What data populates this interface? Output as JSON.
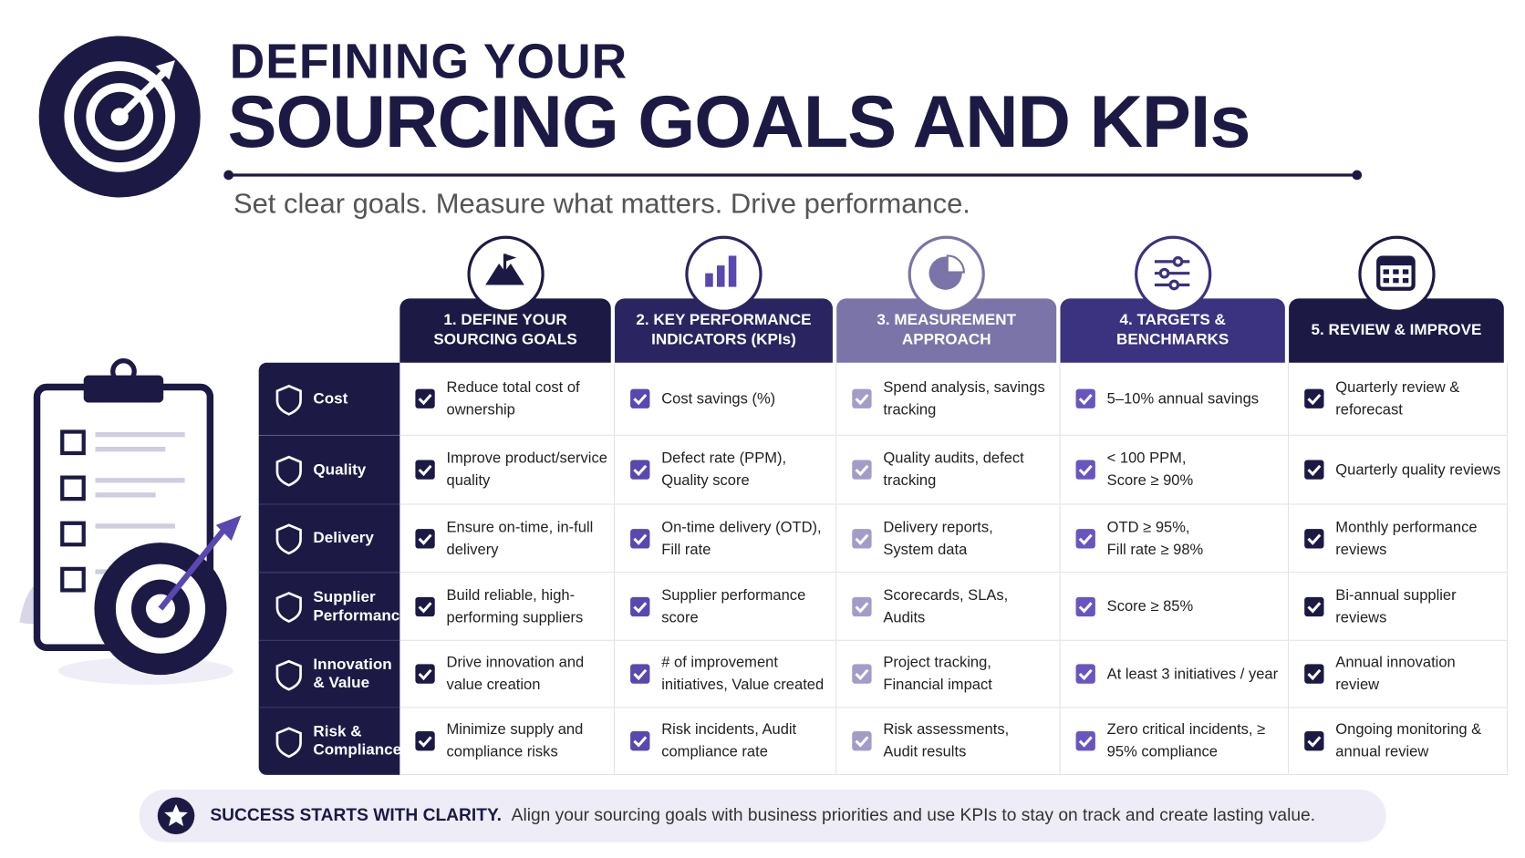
{
  "header": {
    "title_line1": "DEFINING YOUR",
    "title_line2": "SOURCING GOALS AND KPIs",
    "subtitle": "Set clear goals. Measure what matters. Drive performance."
  },
  "table": {
    "columns": [
      "1. DEFINE YOUR SOURCING GOALS",
      "2. KEY PERFORMANCE INDICATORS (KPIs)",
      "3. MEASUREMENT APPROACH",
      "4. TARGETS & BENCHMARKS",
      "5. REVIEW & IMPROVE"
    ],
    "rows": [
      {
        "label": "Cost",
        "cells": [
          "Reduce total cost of ownership",
          "Cost savings (%)",
          "Spend analysis, savings tracking",
          "5–10% annual savings",
          "Quarterly review & reforecast"
        ]
      },
      {
        "label": "Quality",
        "cells": [
          "Improve product/service quality",
          "Defect rate (PPM), Quality score",
          "Quality audits, defect tracking",
          "< 100 PPM,\nScore ≥ 90%",
          "Quarterly quality reviews"
        ]
      },
      {
        "label": "Delivery",
        "cells": [
          "Ensure on-time, in-full delivery",
          "On-time delivery (OTD), Fill rate",
          "Delivery reports,\nSystem data",
          "OTD ≥ 95%,\nFill rate ≥ 98%",
          "Monthly performance reviews"
        ]
      },
      {
        "label": "Supplier Performance",
        "cells": [
          "Build reliable, high-performing suppliers",
          "Supplier performance score",
          "Scorecards, SLAs,\nAudits",
          "Score ≥ 85%",
          "Bi-annual supplier reviews"
        ]
      },
      {
        "label": "Innovation & Value",
        "cells": [
          "Drive innovation and value creation",
          "# of improvement initiatives, Value created",
          "Project tracking,\nFinancial impact",
          "At least 3 initiatives / year",
          "Annual innovation review"
        ]
      },
      {
        "label": "Risk & Compliance",
        "cells": [
          "Minimize supply and compliance risks",
          "Risk incidents, Audit compliance rate",
          "Risk assessments,\nAudit results",
          "Zero critical incidents, ≥ 95% compliance",
          "Ongoing monitoring & annual review"
        ]
      }
    ]
  },
  "footer": {
    "bold": "SUCCESS STARTS WITH CLARITY.",
    "text": "Align your sourcing goals with business priorities and use KPIs to stay on track and create lasting value."
  }
}
